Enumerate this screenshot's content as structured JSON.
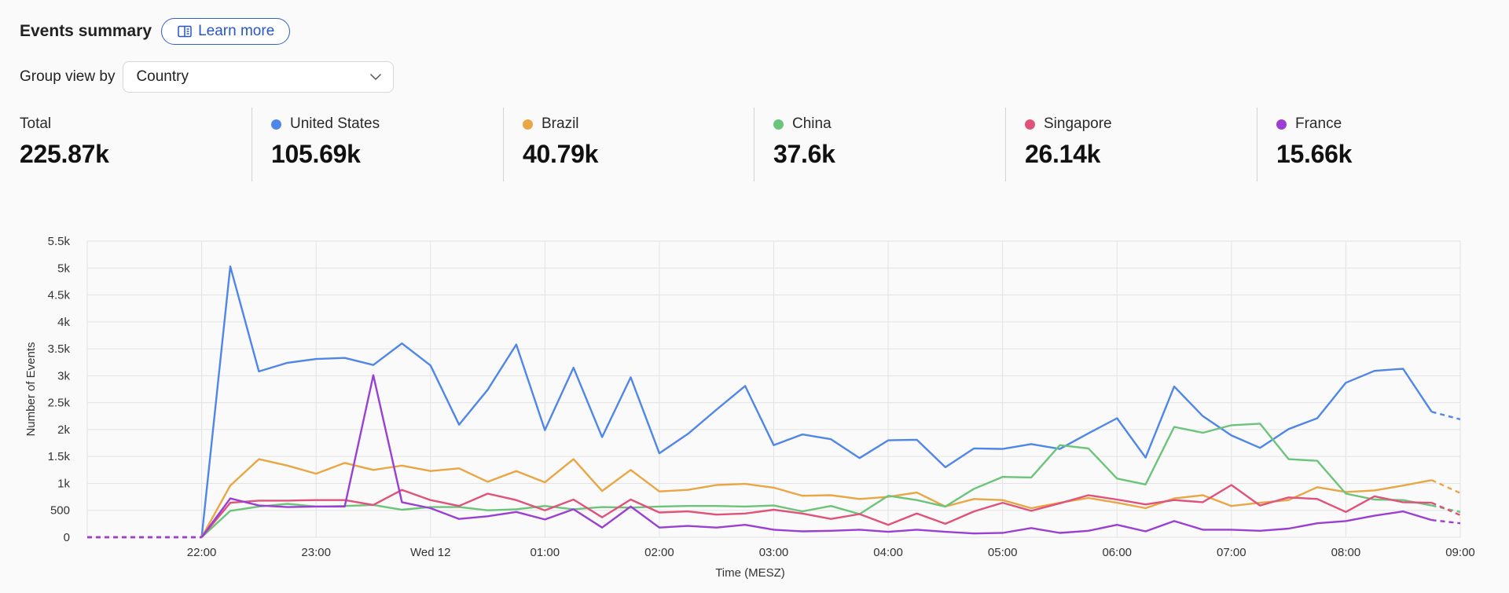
{
  "header": {
    "title": "Events summary",
    "learn_more": "Learn more"
  },
  "groupby": {
    "label": "Group view by",
    "value": "Country"
  },
  "stats": [
    {
      "label": "Total",
      "value": "225.87k",
      "color": null
    },
    {
      "label": "United States",
      "value": "105.69k",
      "color": "#4f86e8"
    },
    {
      "label": "Brazil",
      "value": "40.79k",
      "color": "#e9a644"
    },
    {
      "label": "China",
      "value": "37.6k",
      "color": "#6cc47a"
    },
    {
      "label": "Singapore",
      "value": "26.14k",
      "color": "#e0527a"
    },
    {
      "label": "France",
      "value": "15.66k",
      "color": "#9a3fd1"
    }
  ],
  "chart_data": {
    "type": "line",
    "xlabel": "Time (MESZ)",
    "ylabel": "Number of Events",
    "ylim": [
      0,
      5500
    ],
    "yticks": [
      0,
      500,
      1000,
      1500,
      2000,
      2500,
      3000,
      3500,
      4000,
      4500,
      5000,
      5500
    ],
    "ytick_labels": [
      "0",
      "500",
      "1k",
      "1.5k",
      "2k",
      "2.5k",
      "3k",
      "3.5k",
      "4k",
      "4.5k",
      "5k",
      "5.5k"
    ],
    "xlim": [
      21.0,
      33.0
    ],
    "xticks": [
      {
        "x": 22,
        "label": "22:00"
      },
      {
        "x": 23,
        "label": "23:00"
      },
      {
        "x": 24,
        "label": "Wed 12"
      },
      {
        "x": 25,
        "label": "01:00"
      },
      {
        "x": 26,
        "label": "02:00"
      },
      {
        "x": 27,
        "label": "03:00"
      },
      {
        "x": 28,
        "label": "04:00"
      },
      {
        "x": 29,
        "label": "05:00"
      },
      {
        "x": 30,
        "label": "06:00"
      },
      {
        "x": 31,
        "label": "07:00"
      },
      {
        "x": 32,
        "label": "08:00"
      },
      {
        "x": 33,
        "label": "09:00"
      }
    ],
    "x_start": 21.0,
    "x_step": 0.25,
    "dashed_leading_points": 4,
    "dashed_trailing_points": 1,
    "grid": true,
    "series": [
      {
        "name": "United States",
        "color": "#4f86e8",
        "values": [
          0,
          0,
          0,
          0,
          0,
          5030,
          3080,
          3240,
          3310,
          3330,
          3200,
          3600,
          3190,
          2090,
          2740,
          3580,
          1990,
          3150,
          1860,
          2970,
          1560,
          1920,
          2370,
          2810,
          1710,
          1910,
          1820,
          1470,
          1800,
          1810,
          1300,
          1650,
          1640,
          1730,
          1640,
          1930,
          2210,
          1480,
          2800,
          2250,
          1890,
          1660,
          2010,
          2210,
          2870,
          3090,
          3130,
          2330,
          2190
        ]
      },
      {
        "name": "Brazil",
        "color": "#e9a644",
        "values": [
          0,
          0,
          0,
          0,
          0,
          960,
          1450,
          1330,
          1180,
          1380,
          1250,
          1330,
          1230,
          1280,
          1030,
          1230,
          1020,
          1450,
          860,
          1250,
          850,
          880,
          970,
          990,
          920,
          770,
          780,
          710,
          750,
          830,
          570,
          710,
          690,
          540,
          640,
          730,
          640,
          540,
          720,
          780,
          580,
          640,
          690,
          930,
          840,
          870,
          960,
          1060,
          820
        ]
      },
      {
        "name": "China",
        "color": "#6cc47a",
        "values": [
          0,
          0,
          0,
          0,
          0,
          490,
          570,
          620,
          570,
          580,
          600,
          510,
          560,
          560,
          500,
          520,
          580,
          520,
          560,
          550,
          570,
          580,
          580,
          570,
          590,
          480,
          580,
          430,
          770,
          690,
          570,
          900,
          1120,
          1110,
          1710,
          1650,
          1090,
          980,
          2050,
          1940,
          2080,
          2110,
          1450,
          1420,
          810,
          700,
          690,
          590,
          470
        ]
      },
      {
        "name": "Singapore",
        "color": "#e0527a",
        "values": [
          0,
          0,
          0,
          0,
          0,
          640,
          680,
          680,
          690,
          690,
          600,
          880,
          690,
          580,
          810,
          690,
          500,
          700,
          370,
          700,
          460,
          480,
          420,
          440,
          510,
          440,
          340,
          430,
          230,
          440,
          250,
          480,
          640,
          490,
          630,
          780,
          700,
          610,
          690,
          650,
          970,
          590,
          740,
          710,
          470,
          760,
          650,
          640,
          410
        ]
      },
      {
        "name": "France",
        "color": "#9a3fd1",
        "values": [
          0,
          0,
          0,
          0,
          0,
          720,
          590,
          560,
          570,
          570,
          3010,
          650,
          540,
          340,
          390,
          470,
          330,
          520,
          180,
          570,
          180,
          210,
          180,
          230,
          140,
          110,
          120,
          140,
          100,
          140,
          100,
          70,
          80,
          170,
          80,
          120,
          230,
          110,
          300,
          140,
          140,
          120,
          160,
          260,
          300,
          400,
          480,
          320,
          260
        ]
      }
    ]
  }
}
